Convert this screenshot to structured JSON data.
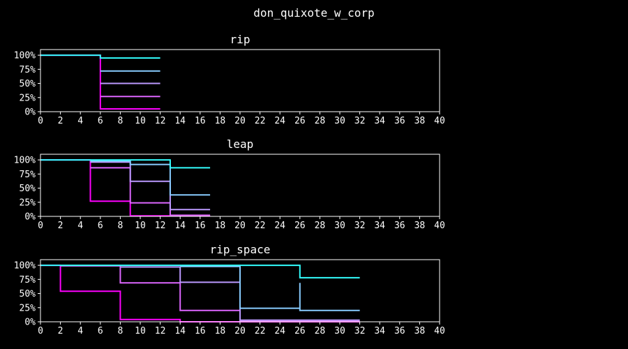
{
  "figure_title": "don_quixote_w_corp",
  "chart_data": [
    {
      "type": "line",
      "step": true,
      "title": "rip",
      "xlim": [
        0,
        40
      ],
      "ylim": [
        0,
        1.1
      ],
      "xticks": [
        0,
        2,
        4,
        6,
        8,
        10,
        12,
        14,
        16,
        18,
        20,
        22,
        24,
        26,
        28,
        30,
        32,
        34,
        36,
        38,
        40
      ],
      "yticks": [
        0,
        0.25,
        0.5,
        0.75,
        1.0
      ],
      "yticklabels": [
        "0%",
        "25%",
        "50%",
        "75%",
        "100%"
      ],
      "series": [
        {
          "color": "#ff00ff",
          "points": [
            [
              0,
              1.0
            ],
            [
              6,
              1.0
            ],
            [
              6,
              0.05
            ],
            [
              12,
              0.05
            ]
          ]
        },
        {
          "color": "#dd66ff",
          "points": [
            [
              6,
              0.27
            ],
            [
              12,
              0.27
            ]
          ]
        },
        {
          "color": "#bb99ff",
          "points": [
            [
              6,
              0.5
            ],
            [
              12,
              0.5
            ]
          ]
        },
        {
          "color": "#88ccff",
          "points": [
            [
              6,
              0.72
            ],
            [
              12,
              0.72
            ]
          ]
        },
        {
          "color": "#33ffff",
          "points": [
            [
              0,
              1.0
            ],
            [
              6,
              1.0
            ],
            [
              6,
              0.95
            ],
            [
              12,
              0.95
            ]
          ]
        }
      ]
    },
    {
      "type": "line",
      "step": true,
      "title": "leap",
      "xlim": [
        0,
        40
      ],
      "ylim": [
        0,
        1.1
      ],
      "xticks": [
        0,
        2,
        4,
        6,
        8,
        10,
        12,
        14,
        16,
        18,
        20,
        22,
        24,
        26,
        28,
        30,
        32,
        34,
        36,
        38,
        40
      ],
      "yticks": [
        0,
        0.25,
        0.5,
        0.75,
        1.0
      ],
      "yticklabels": [
        "0%",
        "25%",
        "50%",
        "75%",
        "100%"
      ],
      "series": [
        {
          "color": "#ff00ff",
          "points": [
            [
              0,
              1.0
            ],
            [
              5,
              1.0
            ],
            [
              5,
              0.27
            ],
            [
              9,
              0.27
            ],
            [
              9,
              0.01
            ],
            [
              17,
              0.01
            ]
          ]
        },
        {
          "color": "#dd66ff",
          "points": [
            [
              5,
              0.86
            ],
            [
              9,
              0.86
            ],
            [
              9,
              0.24
            ],
            [
              13,
              0.24
            ],
            [
              13,
              0.02
            ],
            [
              17,
              0.02
            ]
          ]
        },
        {
          "color": "#bb99ff",
          "points": [
            [
              5,
              0.96
            ],
            [
              9,
              0.96
            ],
            [
              9,
              0.62
            ],
            [
              13,
              0.62
            ],
            [
              13,
              0.12
            ],
            [
              17,
              0.12
            ]
          ]
        },
        {
          "color": "#88ccff",
          "points": [
            [
              5,
              0.98
            ],
            [
              9,
              0.98
            ],
            [
              9,
              0.92
            ],
            [
              13,
              0.92
            ],
            [
              13,
              0.38
            ],
            [
              17,
              0.38
            ]
          ]
        },
        {
          "color": "#33ffff",
          "points": [
            [
              0,
              1.0
            ],
            [
              13,
              1.0
            ],
            [
              13,
              0.86
            ],
            [
              17,
              0.86
            ]
          ]
        }
      ]
    },
    {
      "type": "line",
      "step": true,
      "title": "rip_space",
      "xlim": [
        0,
        40
      ],
      "ylim": [
        0,
        1.1
      ],
      "xticks": [
        0,
        2,
        4,
        6,
        8,
        10,
        12,
        14,
        16,
        18,
        20,
        22,
        24,
        26,
        28,
        30,
        32,
        34,
        36,
        38,
        40
      ],
      "yticks": [
        0,
        0.25,
        0.5,
        0.75,
        1.0
      ],
      "yticklabels": [
        "0%",
        "25%",
        "50%",
        "75%",
        "100%"
      ],
      "series": [
        {
          "color": "#ff00ff",
          "points": [
            [
              0,
              1.0
            ],
            [
              2,
              1.0
            ],
            [
              2,
              0.54
            ],
            [
              8,
              0.54
            ],
            [
              8,
              0.04
            ],
            [
              14,
              0.04
            ],
            [
              14,
              0.0
            ],
            [
              32,
              0.0
            ]
          ]
        },
        {
          "color": "#dd66ff",
          "points": [
            [
              2,
              0.99
            ],
            [
              8,
              0.99
            ],
            [
              8,
              0.69
            ],
            [
              14,
              0.69
            ],
            [
              14,
              0.2
            ],
            [
              20,
              0.2
            ],
            [
              20,
              0.01
            ],
            [
              32,
              0.01
            ]
          ]
        },
        {
          "color": "#bb99ff",
          "points": [
            [
              8,
              0.97
            ],
            [
              14,
              0.97
            ],
            [
              14,
              0.7
            ],
            [
              20,
              0.7
            ],
            [
              20,
              0.03
            ],
            [
              32,
              0.03
            ]
          ]
        },
        {
          "color": "#88ccff",
          "points": [
            [
              14,
              0.98
            ],
            [
              20,
              0.98
            ],
            [
              20,
              0.24
            ],
            [
              26,
              0.24
            ],
            [
              26,
              0.69
            ],
            [
              26,
              0.2
            ],
            [
              32,
              0.2
            ]
          ]
        },
        {
          "color": "#33ffff",
          "points": [
            [
              0,
              1.0
            ],
            [
              26,
              1.0
            ],
            [
              26,
              0.78
            ],
            [
              32,
              0.78
            ]
          ]
        }
      ]
    }
  ]
}
